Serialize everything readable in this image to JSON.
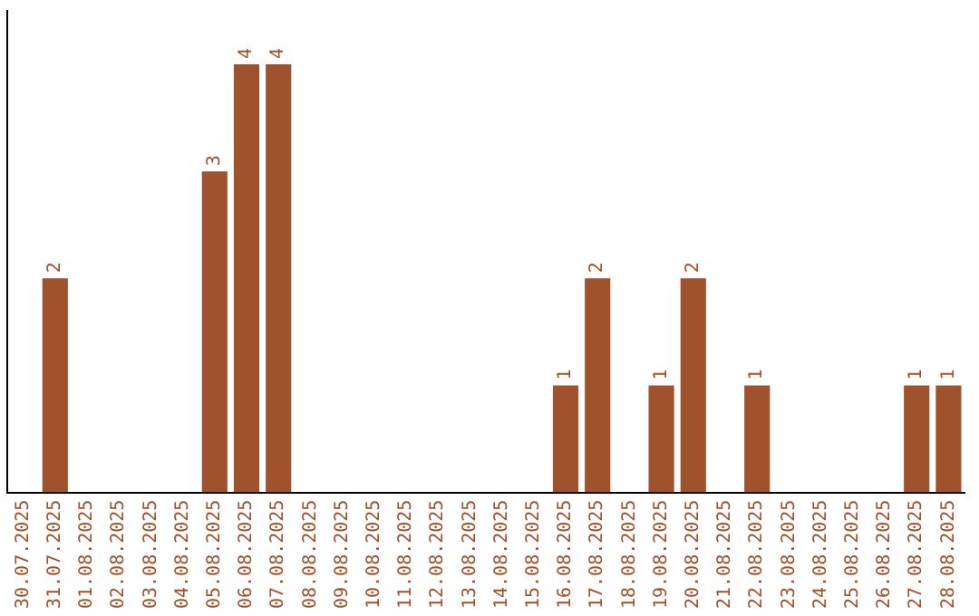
{
  "chart_data": {
    "type": "bar",
    "categories": [
      "30.07.2025",
      "31.07.2025",
      "01.08.2025",
      "02.08.2025",
      "03.08.2025",
      "04.08.2025",
      "05.08.2025",
      "06.08.2025",
      "07.08.2025",
      "08.08.2025",
      "09.08.2025",
      "10.08.2025",
      "11.08.2025",
      "12.08.2025",
      "13.08.2025",
      "14.08.2025",
      "15.08.2025",
      "16.08.2025",
      "17.08.2025",
      "18.08.2025",
      "19.08.2025",
      "20.08.2025",
      "21.08.2025",
      "22.08.2025",
      "23.08.2025",
      "24.08.2025",
      "25.08.2025",
      "26.08.2025",
      "27.08.2025",
      "28.08.2025"
    ],
    "values": [
      0,
      2,
      0,
      0,
      0,
      0,
      3,
      4,
      4,
      0,
      0,
      0,
      0,
      0,
      0,
      0,
      0,
      1,
      2,
      0,
      1,
      2,
      0,
      1,
      0,
      0,
      0,
      0,
      1,
      1
    ],
    "value_labels": [
      null,
      "2",
      null,
      null,
      null,
      null,
      "3",
      "4",
      "4",
      null,
      null,
      null,
      null,
      null,
      null,
      null,
      null,
      "1",
      "2",
      null,
      "1",
      "2",
      null,
      "1",
      null,
      null,
      null,
      null,
      "1",
      "1"
    ],
    "color": "#a0522d",
    "grid": false,
    "legend": false,
    "tick_labels": "x"
  }
}
